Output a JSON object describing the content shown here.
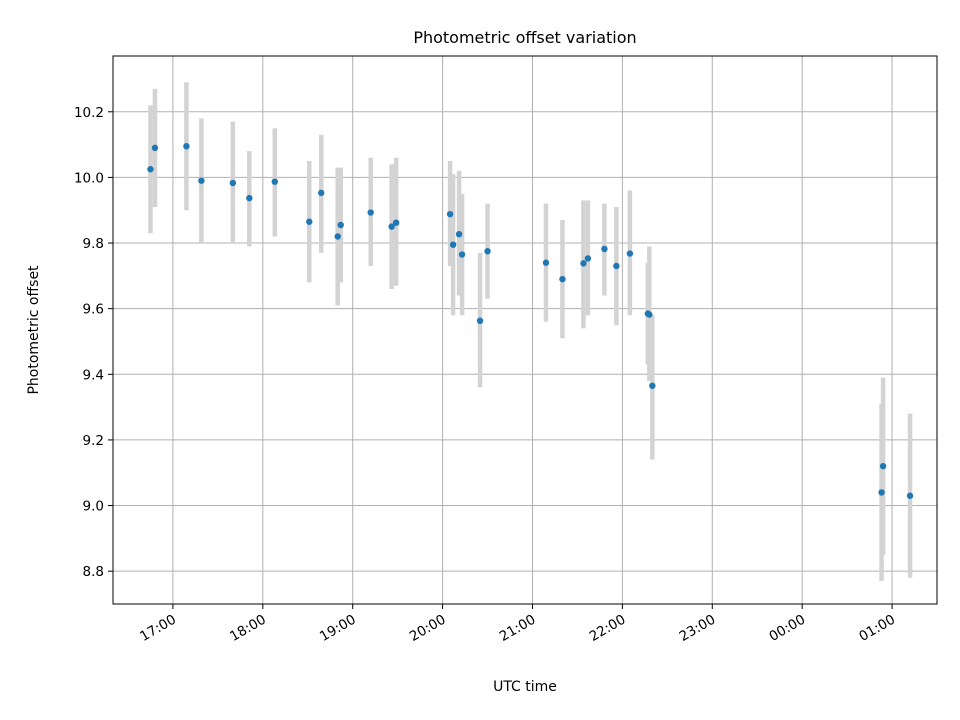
{
  "chart_data": {
    "type": "scatter",
    "title": "Photometric offset variation",
    "xlabel": "UTC time",
    "ylabel": "Photometric offset",
    "grid": true,
    "x_axis_type": "time",
    "xlim": [
      "16:20",
      "25:30"
    ],
    "ylim": [
      8.7,
      10.37
    ],
    "x_ticks": [
      {
        "t": "17:00",
        "label": "17:00"
      },
      {
        "t": "18:00",
        "label": "18:00"
      },
      {
        "t": "19:00",
        "label": "19:00"
      },
      {
        "t": "20:00",
        "label": "20:00"
      },
      {
        "t": "21:00",
        "label": "21:00"
      },
      {
        "t": "22:00",
        "label": "22:00"
      },
      {
        "t": "23:00",
        "label": "23:00"
      },
      {
        "t": "24:00",
        "label": "00:00"
      },
      {
        "t": "25:00",
        "label": "01:00"
      }
    ],
    "y_ticks": [
      {
        "v": 8.8,
        "label": "8.8"
      },
      {
        "v": 9.0,
        "label": "9.0"
      },
      {
        "v": 9.2,
        "label": "9.2"
      },
      {
        "v": 9.4,
        "label": "9.4"
      },
      {
        "v": 9.6,
        "label": "9.6"
      },
      {
        "v": 9.8,
        "label": "9.8"
      },
      {
        "v": 10.0,
        "label": "10.0"
      },
      {
        "v": 10.2,
        "label": "10.2"
      }
    ],
    "colors": {
      "point": "#1f77b4",
      "errorbar": "#d3d3d3",
      "grid": "#b0b0b0"
    },
    "points": [
      {
        "t": "16:45",
        "y": 10.025,
        "lo": 9.83,
        "hi": 10.22
      },
      {
        "t": "16:48",
        "y": 10.09,
        "lo": 9.91,
        "hi": 10.27
      },
      {
        "t": "17:09",
        "y": 10.095,
        "lo": 9.9,
        "hi": 10.29
      },
      {
        "t": "17:19",
        "y": 9.99,
        "lo": 9.8,
        "hi": 10.18
      },
      {
        "t": "17:40",
        "y": 9.983,
        "lo": 9.8,
        "hi": 10.17
      },
      {
        "t": "17:51",
        "y": 9.937,
        "lo": 9.79,
        "hi": 10.08
      },
      {
        "t": "18:08",
        "y": 9.987,
        "lo": 9.82,
        "hi": 10.15
      },
      {
        "t": "18:31",
        "y": 9.865,
        "lo": 9.68,
        "hi": 10.05
      },
      {
        "t": "18:39",
        "y": 9.953,
        "lo": 9.77,
        "hi": 10.13
      },
      {
        "t": "18:50",
        "y": 9.82,
        "lo": 9.61,
        "hi": 10.03
      },
      {
        "t": "18:52",
        "y": 9.855,
        "lo": 9.68,
        "hi": 10.03
      },
      {
        "t": "19:12",
        "y": 9.893,
        "lo": 9.73,
        "hi": 10.06
      },
      {
        "t": "19:26",
        "y": 9.85,
        "lo": 9.66,
        "hi": 10.04
      },
      {
        "t": "19:29",
        "y": 9.862,
        "lo": 9.67,
        "hi": 10.06
      },
      {
        "t": "20:05",
        "y": 9.888,
        "lo": 9.73,
        "hi": 10.05
      },
      {
        "t": "20:07",
        "y": 9.795,
        "lo": 9.58,
        "hi": 10.01
      },
      {
        "t": "20:11",
        "y": 9.827,
        "lo": 9.64,
        "hi": 10.02
      },
      {
        "t": "20:13",
        "y": 9.765,
        "lo": 9.58,
        "hi": 9.95
      },
      {
        "t": "20:25",
        "y": 9.563,
        "lo": 9.36,
        "hi": 9.77
      },
      {
        "t": "20:30",
        "y": 9.775,
        "lo": 9.63,
        "hi": 9.92
      },
      {
        "t": "21:09",
        "y": 9.74,
        "lo": 9.56,
        "hi": 9.92
      },
      {
        "t": "21:20",
        "y": 9.69,
        "lo": 9.51,
        "hi": 9.87
      },
      {
        "t": "21:34",
        "y": 9.738,
        "lo": 9.54,
        "hi": 9.93
      },
      {
        "t": "21:37",
        "y": 9.753,
        "lo": 9.58,
        "hi": 9.93
      },
      {
        "t": "21:48",
        "y": 9.782,
        "lo": 9.64,
        "hi": 9.92
      },
      {
        "t": "21:56",
        "y": 9.73,
        "lo": 9.55,
        "hi": 9.91
      },
      {
        "t": "22:05",
        "y": 9.768,
        "lo": 9.58,
        "hi": 9.96
      },
      {
        "t": "22:17",
        "y": 9.585,
        "lo": 9.43,
        "hi": 9.74
      },
      {
        "t": "22:18",
        "y": 9.582,
        "lo": 9.38,
        "hi": 9.79
      },
      {
        "t": "22:20",
        "y": 9.365,
        "lo": 9.14,
        "hi": 9.58
      },
      {
        "t": "24:53",
        "y": 9.04,
        "lo": 8.77,
        "hi": 9.31
      },
      {
        "t": "24:54",
        "y": 9.12,
        "lo": 8.85,
        "hi": 9.39
      },
      {
        "t": "25:12",
        "y": 9.03,
        "lo": 8.78,
        "hi": 9.28
      }
    ]
  }
}
